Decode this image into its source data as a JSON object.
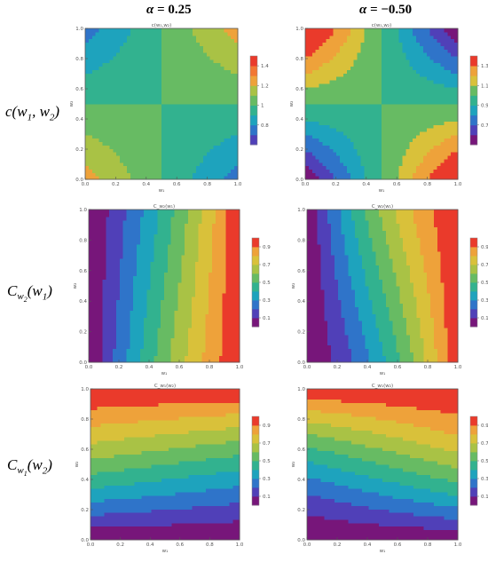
{
  "figure": {
    "col_headers": [
      {
        "symbol": "α",
        "rest": " = 0.25"
      },
      {
        "symbol": "α",
        "rest": " = −0.50"
      }
    ],
    "row_labels": [
      {
        "main": "c",
        "open": "(",
        "a": "w",
        "a_sub": "1",
        "sep": ", ",
        "b": "w",
        "b_sub": "2",
        "close": ")",
        "kind": "copula"
      },
      {
        "main": "C",
        "sub": "w",
        "subsub": "2",
        "open": "(",
        "a": "w",
        "a_sub": "1",
        "close": ")",
        "kind": "cond"
      },
      {
        "main": "C",
        "sub": "w",
        "subsub": "1",
        "open": "(",
        "a": "w",
        "a_sub": "2",
        "close": ")",
        "kind": "cond"
      }
    ]
  },
  "palette": [
    "#77167a",
    "#5040b8",
    "#2f74c9",
    "#1ea3bd",
    "#32b28f",
    "#67bb63",
    "#a9c245",
    "#d9c13a",
    "#eea23a",
    "#f27733",
    "#ea3a2b"
  ],
  "chart_data": [
    {
      "type": "heatmap",
      "title": "c(w₁,w₂)",
      "xlabel": "w₁",
      "ylabel": "w₂",
      "alpha": 0.25,
      "function": "density",
      "xlim": [
        0,
        1
      ],
      "ylim": [
        0,
        1
      ],
      "xticks": [
        "0.0",
        "0.2",
        "0.4",
        "0.6",
        "0.8",
        "1.0"
      ],
      "yticks": [
        "0.0",
        "0.2",
        "0.4",
        "0.6",
        "0.8",
        "1.0"
      ],
      "levels": [
        0.7,
        0.8,
        0.9,
        1.0,
        1.1,
        1.2,
        1.3,
        1.4
      ],
      "level_colors": [
        "#5040b8",
        "#2f74c9",
        "#1ea3bd",
        "#32b28f",
        "#67bb63",
        "#a9c245",
        "#eea23a",
        "#f27733",
        "#ea3a2b"
      ],
      "legend_ticks": [
        "0.8",
        "1",
        "1.2",
        "1.4"
      ],
      "legend_placement": "right"
    },
    {
      "type": "heatmap",
      "title": "c(w₁,w₂)",
      "xlabel": "w₁",
      "ylabel": "w₂",
      "alpha": -0.5,
      "function": "density",
      "xlim": [
        0,
        1
      ],
      "ylim": [
        0,
        1
      ],
      "xticks": [
        "0.0",
        "0.2",
        "0.4",
        "0.6",
        "0.8",
        "1.0"
      ],
      "yticks": [
        "0.0",
        "0.2",
        "0.4",
        "0.6",
        "0.8",
        "1.0"
      ],
      "levels": [
        0.6,
        0.7,
        0.8,
        0.9,
        1.0,
        1.1,
        1.2,
        1.3
      ],
      "level_colors": [
        "#77167a",
        "#5040b8",
        "#2f74c9",
        "#1ea3bd",
        "#32b28f",
        "#67bb63",
        "#d9c13a",
        "#eea23a",
        "#ea3a2b"
      ],
      "legend_ticks": [
        "0.7",
        "0.9",
        "1.1",
        "1.3"
      ],
      "legend_placement": "right"
    },
    {
      "type": "heatmap",
      "title": "C_w₂(w₁)",
      "xlabel": "w₁",
      "ylabel": "w₂",
      "alpha": 0.25,
      "function": "cond_w1",
      "xlim": [
        0,
        1
      ],
      "ylim": [
        0,
        1
      ],
      "xticks": [
        "0.0",
        "0.2",
        "0.4",
        "0.6",
        "0.8",
        "1.0"
      ],
      "yticks": [
        "0.0",
        "0.2",
        "0.4",
        "0.6",
        "0.8",
        "1.0"
      ],
      "levels": [
        0.1,
        0.2,
        0.3,
        0.4,
        0.5,
        0.6,
        0.7,
        0.8,
        0.9
      ],
      "level_colors": [
        "#77167a",
        "#5040b8",
        "#2f74c9",
        "#1ea3bd",
        "#32b28f",
        "#67bb63",
        "#a9c245",
        "#d9c13a",
        "#eea23a",
        "#ea3a2b"
      ],
      "legend_ticks": [
        "0.1",
        "0.3",
        "0.5",
        "0.7",
        "0.9"
      ],
      "legend_placement": "right"
    },
    {
      "type": "heatmap",
      "title": "C_w₂(w₁)",
      "xlabel": "w₁",
      "ylabel": "w₂",
      "alpha": -0.5,
      "function": "cond_w1",
      "xlim": [
        0,
        1
      ],
      "ylim": [
        0,
        1
      ],
      "xticks": [
        "0.0",
        "0.2",
        "0.4",
        "0.6",
        "0.8",
        "1.0"
      ],
      "yticks": [
        "0.0",
        "0.2",
        "0.4",
        "0.6",
        "0.8",
        "1.0"
      ],
      "levels": [
        0.1,
        0.2,
        0.3,
        0.4,
        0.5,
        0.6,
        0.7,
        0.8,
        0.9
      ],
      "level_colors": [
        "#77167a",
        "#5040b8",
        "#2f74c9",
        "#1ea3bd",
        "#32b28f",
        "#67bb63",
        "#a9c245",
        "#d9c13a",
        "#eea23a",
        "#ea3a2b"
      ],
      "legend_ticks": [
        "0.1",
        "0.3",
        "0.5",
        "0.7",
        "0.9"
      ],
      "legend_placement": "right"
    },
    {
      "type": "heatmap",
      "title": "C_w₁(w₂)",
      "xlabel": "w₁",
      "ylabel": "w₂",
      "alpha": 0.25,
      "function": "cond_w2",
      "xlim": [
        0,
        1
      ],
      "ylim": [
        0,
        1
      ],
      "xticks": [
        "0.0",
        "0.2",
        "0.4",
        "0.6",
        "0.8",
        "1.0"
      ],
      "yticks": [
        "0.0",
        "0.2",
        "0.4",
        "0.6",
        "0.8",
        "1.0"
      ],
      "levels": [
        0.1,
        0.2,
        0.3,
        0.4,
        0.5,
        0.6,
        0.7,
        0.8,
        0.9
      ],
      "level_colors": [
        "#77167a",
        "#5040b8",
        "#2f74c9",
        "#1ea3bd",
        "#32b28f",
        "#67bb63",
        "#a9c245",
        "#d9c13a",
        "#eea23a",
        "#ea3a2b"
      ],
      "legend_ticks": [
        "0.1",
        "0.3",
        "0.5",
        "0.7",
        "0.9"
      ],
      "legend_placement": "right"
    },
    {
      "type": "heatmap",
      "title": "C_w₁(w₂)",
      "xlabel": "w₁",
      "ylabel": "w₂",
      "alpha": -0.5,
      "function": "cond_w2",
      "xlim": [
        0,
        1
      ],
      "ylim": [
        0,
        1
      ],
      "xticks": [
        "0.0",
        "0.2",
        "0.4",
        "0.6",
        "0.8",
        "1.0"
      ],
      "yticks": [
        "0.0",
        "0.2",
        "0.4",
        "0.6",
        "0.8",
        "1.0"
      ],
      "levels": [
        0.1,
        0.2,
        0.3,
        0.4,
        0.5,
        0.6,
        0.7,
        0.8,
        0.9
      ],
      "level_colors": [
        "#77167a",
        "#5040b8",
        "#2f74c9",
        "#1ea3bd",
        "#32b28f",
        "#67bb63",
        "#a9c245",
        "#d9c13a",
        "#eea23a",
        "#ea3a2b"
      ],
      "legend_ticks": [
        "0.1",
        "0.3",
        "0.5",
        "0.7",
        "0.9"
      ],
      "legend_placement": "right"
    }
  ]
}
